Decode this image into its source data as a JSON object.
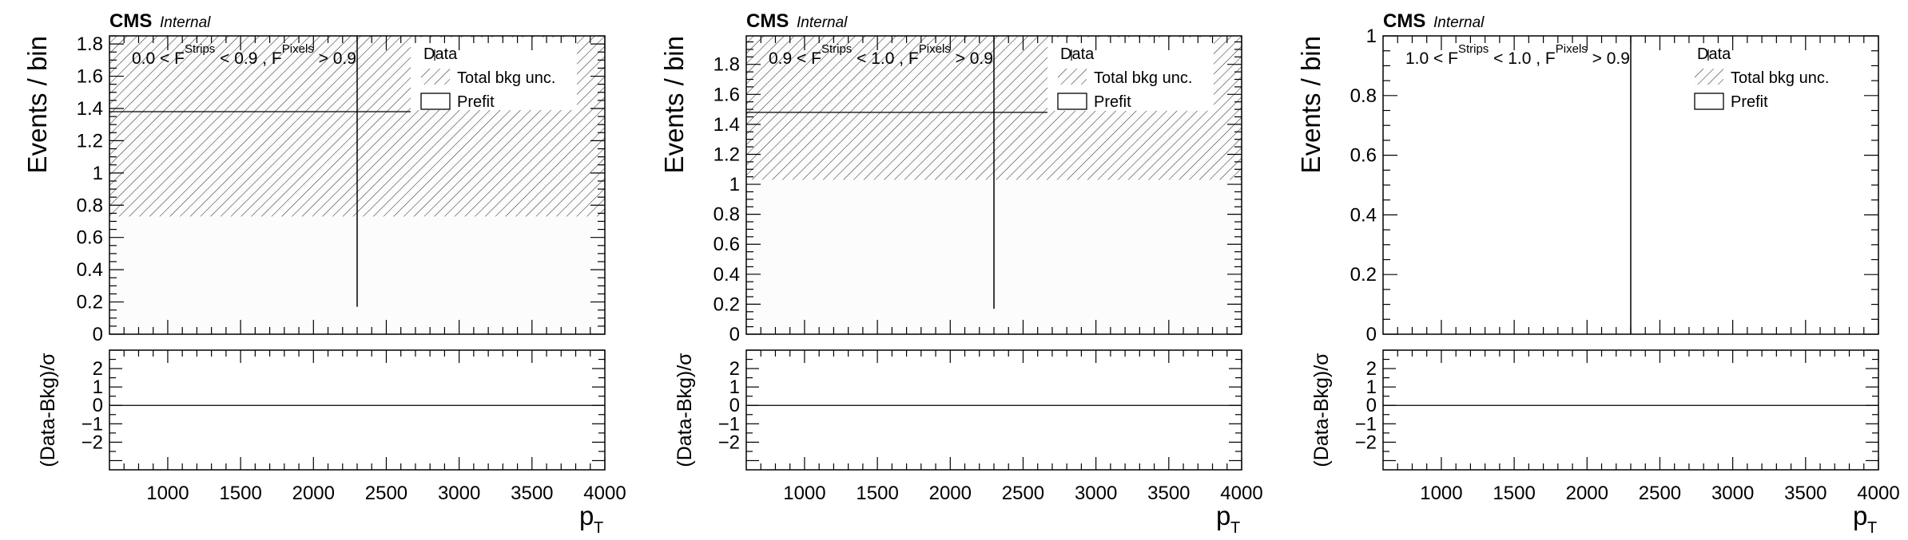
{
  "figure": {
    "cms_label": "CMS",
    "internal_label": "Internal",
    "legend": {
      "data": "Data",
      "unc": "Total bkg unc.",
      "prefit": "Prefit"
    },
    "xlabel_main": "p",
    "xlabel_sub": "T",
    "ylabel_main": "Events / bin",
    "ylabel_ratio": "(Data-Bkg)/σ"
  },
  "chart_data": [
    {
      "type": "bar",
      "region": {
        "pre": "0.0 < F",
        "sup1": "Strips",
        "mid": " < 0.9 , F",
        "sup2": "Pixels",
        "post": " > 0.9"
      },
      "x_ticks": [
        1000,
        1500,
        2000,
        2500,
        3000,
        3500,
        4000
      ],
      "xlim": [
        600,
        4000
      ],
      "ylim": [
        0,
        1.85
      ],
      "y_ticks": [
        "0",
        "0.2",
        "0.4",
        "0.6",
        "0.8",
        "1",
        "1.2",
        "1.4",
        "1.6",
        "1.8"
      ],
      "prefit_value": 0,
      "unc_band": [
        0.73,
        1.85
      ],
      "unc_band_upper_unshaded_below_legend": 1.38,
      "data_point": {
        "x": 2300,
        "y": 0,
        "y_err_high": 1.85,
        "y_err_low_cut": 0.17
      },
      "data_hline": 1.38,
      "ratio_ylim": [
        -3.5,
        3
      ],
      "ratio_ticks": [
        "−2",
        "−1",
        "0",
        "1",
        "2"
      ],
      "ratio_values": [
        0
      ]
    },
    {
      "type": "bar",
      "region": {
        "pre": "0.9 < F",
        "sup1": "Strips",
        "mid": " < 1.0 , F",
        "sup2": "Pixels",
        "post": " > 0.9"
      },
      "x_ticks": [
        1000,
        1500,
        2000,
        2500,
        3000,
        3500,
        4000
      ],
      "xlim": [
        600,
        4000
      ],
      "ylim": [
        0,
        1.99
      ],
      "y_ticks": [
        "0",
        "0.2",
        "0.4",
        "0.6",
        "0.8",
        "1",
        "1.2",
        "1.4",
        "1.6",
        "1.8"
      ],
      "prefit_value": 0,
      "unc_band": [
        1.03,
        1.99
      ],
      "unc_band_upper_unshaded_below_legend": 1.48,
      "data_point": {
        "x": 2300,
        "y": 0,
        "y_err_high": 1.99,
        "y_err_low_cut": 0.17
      },
      "data_hline": 1.48,
      "ratio_ylim": [
        -3.5,
        3
      ],
      "ratio_ticks": [
        "−2",
        "−1",
        "0",
        "1",
        "2"
      ],
      "ratio_values": [
        0
      ]
    },
    {
      "type": "bar",
      "region": {
        "pre": "1.0 < F",
        "sup1": "Strips",
        "mid": " < 1.0 , F",
        "sup2": "Pixels",
        "post": " > 0.9"
      },
      "x_ticks": [
        1000,
        1500,
        2000,
        2500,
        3000,
        3500,
        4000
      ],
      "xlim": [
        600,
        4000
      ],
      "ylim": [
        0,
        1
      ],
      "y_ticks": [
        "0",
        "0.2",
        "0.4",
        "0.6",
        "0.8",
        "1"
      ],
      "prefit_value": 0,
      "unc_band": null,
      "data_point": {
        "x": 2300,
        "y": 0,
        "y_err_high": 1,
        "y_err_low_cut": 0
      },
      "data_hline": null,
      "ratio_ylim": [
        -3.5,
        3
      ],
      "ratio_ticks": [
        "−2",
        "−1",
        "0",
        "1",
        "2"
      ],
      "ratio_values": [
        0
      ]
    }
  ]
}
